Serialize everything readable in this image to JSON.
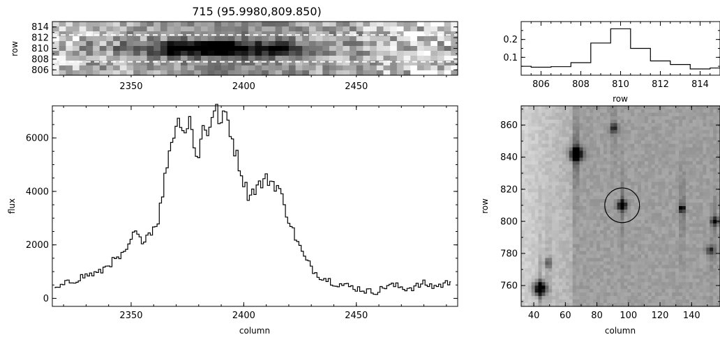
{
  "title": "715 (95.9980,809.850)",
  "chart_data": [
    {
      "id": "spectrum-image",
      "type": "heatmap",
      "xlim": [
        2315,
        2495
      ],
      "ylim": [
        805,
        815
      ],
      "x_ticks": [
        2350,
        2400,
        2450
      ],
      "y_ticks": [
        806,
        808,
        810,
        812,
        814
      ],
      "ylabel": "row",
      "xlabel": "",
      "extraction_rows": [
        807.5,
        812.5
      ],
      "colors": {
        "dark": "#000000",
        "light": "#ffffff"
      }
    },
    {
      "id": "spatial-profile",
      "type": "line",
      "xlim": [
        805,
        815
      ],
      "ylim": [
        0,
        0.3
      ],
      "x_ticks": [
        806,
        808,
        810,
        812,
        814
      ],
      "y_ticks": [
        0.1,
        0.2
      ],
      "xlabel": "row",
      "ylabel": "",
      "x": [
        805,
        806,
        807,
        808,
        809,
        810,
        811,
        812,
        813,
        814,
        815
      ],
      "y": [
        0.05,
        0.045,
        0.048,
        0.07,
        0.18,
        0.26,
        0.15,
        0.08,
        0.06,
        0.035,
        0.04
      ]
    },
    {
      "id": "extracted-spectrum",
      "type": "line",
      "xlim": [
        2315,
        2495
      ],
      "ylim": [
        -300,
        7200
      ],
      "x_ticks": [
        2350,
        2400,
        2450
      ],
      "y_ticks": [
        0,
        2000,
        4000,
        6000
      ],
      "xlabel": "column",
      "ylabel": "flux",
      "x": [
        2316,
        2320,
        2324,
        2328,
        2332,
        2336,
        2340,
        2344,
        2348,
        2350,
        2352,
        2354,
        2356,
        2358,
        2360,
        2362,
        2364,
        2366,
        2368,
        2370,
        2372,
        2374,
        2376,
        2378,
        2380,
        2382,
        2384,
        2386,
        2388,
        2390,
        2392,
        2394,
        2396,
        2398,
        2400,
        2402,
        2404,
        2406,
        2408,
        2410,
        2412,
        2414,
        2416,
        2418,
        2420,
        2422,
        2424,
        2426,
        2428,
        2430,
        2432,
        2436,
        2440,
        2444,
        2448,
        2452,
        2456,
        2460,
        2464,
        2468,
        2472,
        2476,
        2480,
        2484,
        2488,
        2492
      ],
      "y": [
        300,
        500,
        650,
        800,
        900,
        950,
        1300,
        1450,
        1700,
        2200,
        2450,
        2150,
        2300,
        2450,
        2650,
        2950,
        3900,
        5100,
        5900,
        6500,
        6700,
        6200,
        6800,
        5600,
        5400,
        6400,
        6200,
        6900,
        7000,
        6500,
        6950,
        6300,
        5600,
        5000,
        4400,
        3900,
        4000,
        4200,
        4300,
        4450,
        4400,
        4250,
        4100,
        3400,
        3000,
        2500,
        2100,
        1700,
        1350,
        1200,
        950,
        750,
        600,
        500,
        420,
        350,
        250,
        280,
        500,
        450,
        380,
        420,
        550,
        450,
        500,
        620
      ]
    },
    {
      "id": "direct-image",
      "type": "heatmap",
      "xlim": [
        32,
        158
      ],
      "ylim": [
        747,
        872
      ],
      "x_ticks": [
        40,
        60,
        80,
        100,
        120,
        140
      ],
      "y_ticks": [
        760,
        780,
        800,
        820,
        840,
        860
      ],
      "xlabel": "column",
      "ylabel": "row",
      "marker": {
        "x": 96,
        "y": 810,
        "r": 11
      },
      "sources": [
        {
          "x": 44,
          "y": 758,
          "s": 3,
          "level": 0.95
        },
        {
          "x": 67,
          "y": 842,
          "s": 3,
          "level": 0.85
        },
        {
          "x": 96,
          "y": 810,
          "s": 2,
          "level": 0.9
        },
        {
          "x": 134,
          "y": 808,
          "s": 1.5,
          "level": 0.6
        },
        {
          "x": 91,
          "y": 858,
          "s": 2,
          "level": 0.4
        },
        {
          "x": 155,
          "y": 800,
          "s": 2,
          "level": 0.5
        },
        {
          "x": 49,
          "y": 774,
          "s": 2,
          "level": 0.35
        },
        {
          "x": 152,
          "y": 782,
          "s": 2,
          "level": 0.4
        }
      ]
    }
  ]
}
